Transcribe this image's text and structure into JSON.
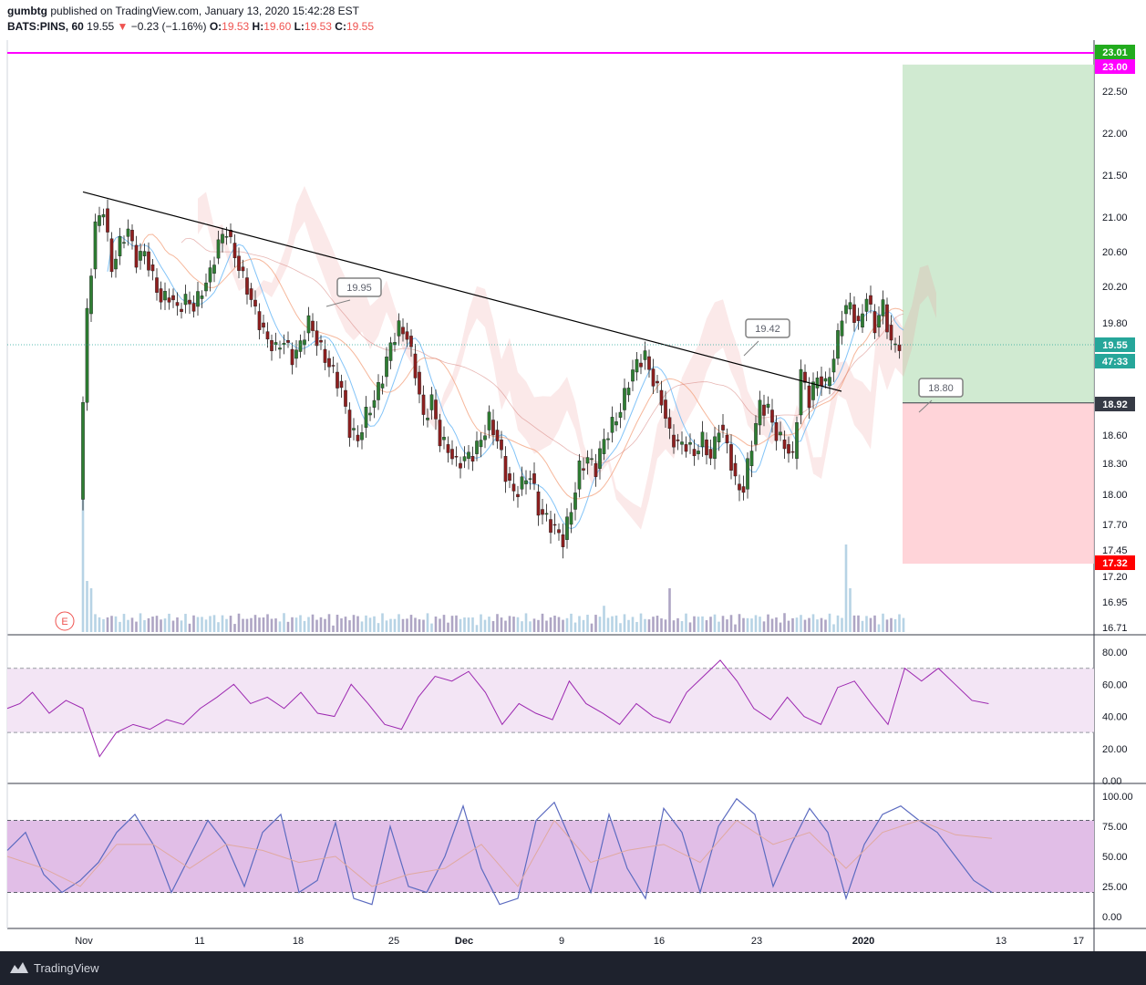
{
  "header": {
    "author": "gumbtg",
    "published_text": "published on TradingView.com, January 13, 2020 15:42:28 EST",
    "symbol": "BATS:PINS, 60",
    "last": "19.55",
    "change_arrow": "▼",
    "change": "−0.23 (−1.16%)",
    "o_label": "O:",
    "o_value": "19.53",
    "h_label": "H:",
    "h_value": "19.60",
    "l_label": "L:",
    "l_value": "19.53",
    "c_label": "C:",
    "c_value": "19.55"
  },
  "footer": {
    "brand": "TradingView",
    "logo_icon": "tradingview-logo-icon"
  },
  "colors": {
    "up": "#26a69a",
    "down": "#ef5350",
    "candle_up": "#2e7d32",
    "candle_down": "#8e1f1f",
    "magenta": "#ff00ff",
    "target_zone": "#c8e6c9",
    "stop_zone": "#ffcdd2",
    "rsi_band": "#f3e5f5",
    "rsi_line": "#9c27b0",
    "stoch_band": "#e1bee7",
    "stoch_k": "#5c6bc0",
    "stoch_d": "#e0a9a0"
  },
  "chart_data": [
    {
      "type": "candlestick",
      "symbol": "BATS:PINS",
      "interval": "60",
      "x_tick_labels": [
        "Nov",
        "11",
        "18",
        "25",
        "Dec",
        "9",
        "16",
        "23",
        "2020",
        "13",
        "17"
      ],
      "y_tick_labels": [
        "22.50",
        "22.00",
        "21.50",
        "21.00",
        "20.60",
        "20.20",
        "19.80",
        "18.60",
        "18.30",
        "18.00",
        "17.70",
        "17.45",
        "17.20",
        "16.95",
        "16.71"
      ],
      "ylim": [
        16.65,
        23.05
      ],
      "close_path": [
        [
          0,
          17.95
        ],
        [
          2,
          19.9
        ],
        [
          4,
          20.9
        ],
        [
          6,
          21.1
        ],
        [
          8,
          20.4
        ],
        [
          10,
          20.7
        ],
        [
          12,
          20.85
        ],
        [
          14,
          20.5
        ],
        [
          16,
          20.6
        ],
        [
          18,
          20.3
        ],
        [
          20,
          20.05
        ],
        [
          22,
          20.1
        ],
        [
          24,
          19.95
        ],
        [
          26,
          20.05
        ],
        [
          28,
          19.98
        ],
        [
          30,
          20.15
        ],
        [
          32,
          20.35
        ],
        [
          34,
          20.7
        ],
        [
          36,
          20.85
        ],
        [
          38,
          20.55
        ],
        [
          40,
          20.3
        ],
        [
          42,
          20.05
        ],
        [
          44,
          19.8
        ],
        [
          46,
          19.6
        ],
        [
          48,
          19.5
        ],
        [
          50,
          19.6
        ],
        [
          52,
          19.4
        ],
        [
          54,
          19.55
        ],
        [
          56,
          19.82
        ],
        [
          58,
          19.6
        ],
        [
          60,
          19.4
        ],
        [
          62,
          19.25
        ],
        [
          64,
          19.05
        ],
        [
          66,
          18.65
        ],
        [
          68,
          18.55
        ],
        [
          70,
          18.8
        ],
        [
          72,
          18.95
        ],
        [
          74,
          19.2
        ],
        [
          76,
          19.55
        ],
        [
          78,
          19.75
        ],
        [
          80,
          19.65
        ],
        [
          82,
          19.25
        ],
        [
          84,
          18.75
        ],
        [
          86,
          18.95
        ],
        [
          88,
          18.55
        ],
        [
          90,
          18.45
        ],
        [
          92,
          18.3
        ],
        [
          94,
          18.35
        ],
        [
          96,
          18.4
        ],
        [
          98,
          18.55
        ],
        [
          100,
          18.75
        ],
        [
          102,
          18.55
        ],
        [
          104,
          18.2
        ],
        [
          106,
          18.0
        ],
        [
          108,
          18.1
        ],
        [
          110,
          18.2
        ],
        [
          112,
          17.85
        ],
        [
          114,
          17.75
        ],
        [
          116,
          17.65
        ],
        [
          118,
          17.55
        ],
        [
          120,
          17.85
        ],
        [
          122,
          18.25
        ],
        [
          124,
          18.35
        ],
        [
          126,
          18.25
        ],
        [
          128,
          18.55
        ],
        [
          130,
          18.7
        ],
        [
          132,
          18.85
        ],
        [
          134,
          19.15
        ],
        [
          136,
          19.35
        ],
        [
          138,
          19.42
        ],
        [
          140,
          19.15
        ],
        [
          142,
          18.95
        ],
        [
          144,
          18.6
        ],
        [
          146,
          18.5
        ],
        [
          148,
          18.5
        ],
        [
          150,
          18.4
        ],
        [
          152,
          18.55
        ],
        [
          154,
          18.35
        ],
        [
          156,
          18.7
        ],
        [
          158,
          18.5
        ],
        [
          160,
          18.1
        ],
        [
          162,
          18.05
        ],
        [
          164,
          18.5
        ],
        [
          166,
          18.9
        ],
        [
          168,
          18.85
        ],
        [
          170,
          18.6
        ],
        [
          172,
          18.5
        ],
        [
          174,
          18.35
        ],
        [
          176,
          19.25
        ],
        [
          178,
          18.95
        ],
        [
          180,
          19.2
        ],
        [
          182,
          19.1
        ],
        [
          184,
          19.4
        ],
        [
          186,
          19.9
        ],
        [
          188,
          20.0
        ],
        [
          190,
          19.75
        ],
        [
          192,
          20.1
        ],
        [
          194,
          19.75
        ],
        [
          196,
          20.0
        ],
        [
          198,
          19.55
        ],
        [
          200,
          19.55
        ]
      ],
      "volume": [
        {
          "x": 0,
          "volume": 1.0
        },
        {
          "x": 1,
          "volume": 0.35
        },
        {
          "x": 2,
          "volume": 0.3
        },
        {
          "x": 44,
          "volume": 0.1
        },
        {
          "x": 95,
          "volume": 0.1
        },
        {
          "x": 127,
          "volume": 0.18
        },
        {
          "x": 143,
          "volume": 0.3
        },
        {
          "x": 186,
          "volume": 0.6
        },
        {
          "x": 187,
          "volume": 0.3
        }
      ],
      "trendline": {
        "from": [
          0,
          21.3
        ],
        "to": [
          176,
          19.1
        ]
      },
      "horizontal_level": 23.0,
      "callouts": [
        "19.95",
        "19.42",
        "18.80"
      ],
      "event_marker": "E",
      "long_position": {
        "entry": 18.92,
        "target": 23.01,
        "stop": 17.32
      },
      "price_labels": [
        {
          "label": "23.01",
          "color": "#22ab1e"
        },
        {
          "label": "23.00",
          "color": "#ff00ff"
        },
        {
          "label": "19.55",
          "color": "#26a69a"
        },
        {
          "label": "47:33",
          "color": "#26a69a"
        },
        {
          "label": "18.92",
          "color": "#363a45"
        },
        {
          "label": "17.32",
          "color": "#ff0000"
        }
      ]
    },
    {
      "type": "line",
      "indicator": "RSI",
      "y_tick_labels": [
        "80.00",
        "60.00",
        "40.00",
        "20.00",
        "0.00"
      ],
      "ylim": [
        0,
        88
      ],
      "bands": [
        30,
        70
      ],
      "values": [
        [
          0,
          45
        ],
        [
          3,
          48
        ],
        [
          6,
          55
        ],
        [
          10,
          42
        ],
        [
          14,
          50
        ],
        [
          18,
          45
        ],
        [
          22,
          15
        ],
        [
          26,
          30
        ],
        [
          30,
          35
        ],
        [
          34,
          32
        ],
        [
          38,
          38
        ],
        [
          42,
          35
        ],
        [
          46,
          45
        ],
        [
          50,
          52
        ],
        [
          54,
          60
        ],
        [
          58,
          48
        ],
        [
          62,
          52
        ],
        [
          66,
          45
        ],
        [
          70,
          55
        ],
        [
          74,
          42
        ],
        [
          78,
          40
        ],
        [
          82,
          60
        ],
        [
          86,
          48
        ],
        [
          90,
          35
        ],
        [
          94,
          32
        ],
        [
          98,
          52
        ],
        [
          102,
          65
        ],
        [
          106,
          62
        ],
        [
          110,
          68
        ],
        [
          114,
          55
        ],
        [
          118,
          35
        ],
        [
          122,
          48
        ],
        [
          126,
          42
        ],
        [
          130,
          38
        ],
        [
          134,
          62
        ],
        [
          138,
          48
        ],
        [
          142,
          42
        ],
        [
          146,
          35
        ],
        [
          150,
          48
        ],
        [
          154,
          40
        ],
        [
          158,
          36
        ],
        [
          162,
          55
        ],
        [
          166,
          65
        ],
        [
          170,
          75
        ],
        [
          174,
          62
        ],
        [
          178,
          45
        ],
        [
          182,
          38
        ],
        [
          186,
          52
        ],
        [
          190,
          40
        ],
        [
          194,
          35
        ],
        [
          198,
          58
        ],
        [
          202,
          62
        ],
        [
          206,
          48
        ],
        [
          210,
          35
        ],
        [
          214,
          70
        ],
        [
          218,
          62
        ],
        [
          222,
          70
        ],
        [
          226,
          60
        ],
        [
          230,
          50
        ],
        [
          234,
          48
        ]
      ]
    },
    {
      "type": "line",
      "indicator": "Stochastic",
      "y_tick_labels": [
        "100.00",
        "75.00",
        "50.00",
        "25.00",
        "0.00"
      ],
      "ylim": [
        -10,
        110
      ],
      "bands": [
        20,
        80
      ],
      "series": [
        {
          "values": [
            [
              0,
              55
            ],
            [
              4,
              70
            ],
            [
              8,
              35
            ],
            [
              12,
              20
            ],
            [
              16,
              30
            ],
            [
              20,
              45
            ],
            [
              24,
              70
            ],
            [
              28,
              85
            ],
            [
              32,
              60
            ],
            [
              36,
              20
            ],
            [
              40,
              50
            ],
            [
              44,
              80
            ],
            [
              48,
              60
            ],
            [
              52,
              25
            ],
            [
              56,
              70
            ],
            [
              60,
              85
            ],
            [
              64,
              20
            ],
            [
              68,
              30
            ],
            [
              72,
              78
            ],
            [
              76,
              15
            ],
            [
              80,
              10
            ],
            [
              84,
              75
            ],
            [
              88,
              25
            ],
            [
              92,
              20
            ],
            [
              96,
              50
            ],
            [
              100,
              92
            ],
            [
              104,
              40
            ],
            [
              108,
              10
            ],
            [
              112,
              15
            ],
            [
              116,
              80
            ],
            [
              120,
              95
            ],
            [
              124,
              60
            ],
            [
              128,
              20
            ],
            [
              132,
              85
            ],
            [
              136,
              40
            ],
            [
              140,
              15
            ],
            [
              144,
              90
            ],
            [
              148,
              70
            ],
            [
              152,
              20
            ],
            [
              156,
              75
            ],
            [
              160,
              98
            ],
            [
              164,
              85
            ],
            [
              168,
              25
            ],
            [
              172,
              60
            ],
            [
              176,
              90
            ],
            [
              180,
              70
            ],
            [
              184,
              15
            ],
            [
              188,
              60
            ],
            [
              192,
              85
            ],
            [
              196,
              92
            ],
            [
              200,
              80
            ],
            [
              204,
              70
            ],
            [
              208,
              50
            ],
            [
              212,
              30
            ],
            [
              216,
              20
            ]
          ]
        },
        {
          "values": [
            [
              0,
              50
            ],
            [
              8,
              40
            ],
            [
              16,
              25
            ],
            [
              24,
              60
            ],
            [
              32,
              60
            ],
            [
              40,
              40
            ],
            [
              48,
              60
            ],
            [
              56,
              55
            ],
            [
              64,
              45
            ],
            [
              72,
              50
            ],
            [
              80,
              25
            ],
            [
              88,
              35
            ],
            [
              96,
              40
            ],
            [
              104,
              60
            ],
            [
              112,
              25
            ],
            [
              120,
              80
            ],
            [
              128,
              45
            ],
            [
              136,
              55
            ],
            [
              144,
              60
            ],
            [
              152,
              45
            ],
            [
              160,
              80
            ],
            [
              168,
              60
            ],
            [
              176,
              70
            ],
            [
              184,
              40
            ],
            [
              192,
              70
            ],
            [
              200,
              80
            ],
            [
              208,
              68
            ],
            [
              216,
              65
            ]
          ]
        }
      ]
    }
  ]
}
